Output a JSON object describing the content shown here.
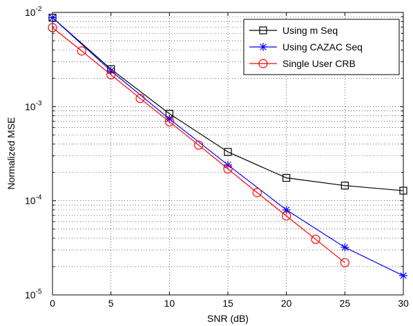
{
  "chart_data": {
    "type": "line",
    "xlabel": "SNR (dB)",
    "ylabel": "Normalized MSE",
    "xlim": [
      0,
      30
    ],
    "ylim": [
      1e-05,
      0.01
    ],
    "yscale": "log",
    "grid": true,
    "legend_position": "top-right",
    "x_ticks": [
      0,
      5,
      10,
      15,
      20,
      25,
      30
    ],
    "y_ticks": [
      {
        "value": 1e-05,
        "base": "10",
        "exp": "-5"
      },
      {
        "value": 0.0001,
        "base": "10",
        "exp": "-4"
      },
      {
        "value": 0.001,
        "base": "10",
        "exp": "-3"
      },
      {
        "value": 0.01,
        "base": "10",
        "exp": "-2"
      }
    ],
    "series": [
      {
        "name": "Using m Seq",
        "color": "#000000",
        "marker": "square",
        "x": [
          0,
          5,
          10,
          15,
          20,
          25,
          30
        ],
        "y": [
          0.0088,
          0.0025,
          0.00084,
          0.00033,
          0.000175,
          0.000145,
          0.000128
        ]
      },
      {
        "name": "Using CAZAC Seq",
        "color": "#0000ff",
        "marker": "star",
        "x": [
          0,
          5,
          10,
          15,
          20,
          25,
          30
        ],
        "y": [
          0.0088,
          0.0024,
          0.00074,
          0.00024,
          8e-05,
          3.2e-05,
          1.6e-05
        ]
      },
      {
        "name": "Single User CRB",
        "color": "#ff0000",
        "marker": "circle",
        "x": [
          0,
          2.5,
          5,
          7.5,
          10,
          12.5,
          15,
          17.5,
          20,
          22.5,
          25
        ],
        "y": [
          0.0069,
          0.0039,
          0.00218,
          0.00122,
          0.00069,
          0.00039,
          0.000218,
          0.000122,
          6.9e-05,
          3.9e-05,
          2.2e-05
        ]
      }
    ]
  }
}
